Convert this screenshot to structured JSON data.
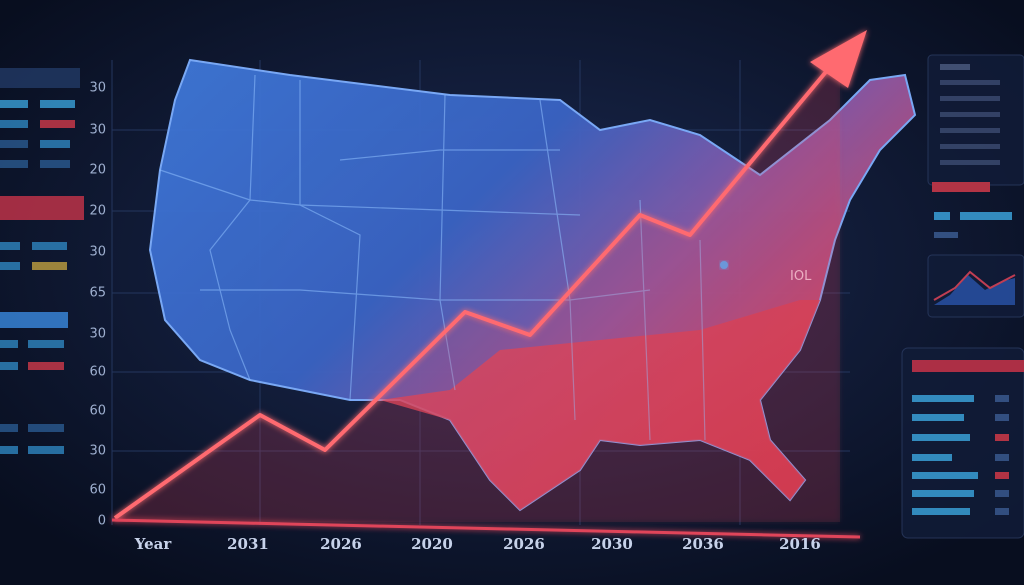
{
  "y_axis_labels": [
    "30",
    "30",
    "20",
    "20",
    "30",
    "65",
    "30",
    "60",
    "60",
    "30",
    "60",
    "0"
  ],
  "x_axis_labels": [
    "Year",
    "2031",
    "2026",
    "2020",
    "2026",
    "2030",
    "2036",
    "2016"
  ],
  "map_label": "IOL"
}
